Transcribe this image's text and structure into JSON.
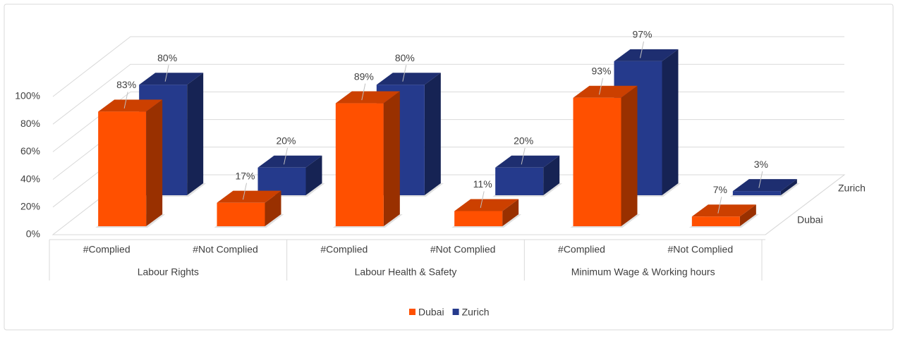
{
  "chart_data": {
    "type": "bar3d",
    "categories": [
      "#Complied",
      "#Not Complied",
      "#Complied",
      "#Not Complied",
      "#Complied",
      "#Not Complied"
    ],
    "groups": [
      "Labour Rights",
      "Labour Health & Safety",
      "Minimum Wage & Working hours"
    ],
    "series": [
      {
        "name": "Dubai",
        "color": "#ff5000",
        "values": [
          83,
          17,
          89,
          11,
          93,
          7
        ],
        "value_labels": [
          "83%",
          "17%",
          "89%",
          "11%",
          "93%",
          "7%"
        ]
      },
      {
        "name": "Zurich",
        "color": "#253a8c",
        "values": [
          80,
          20,
          80,
          20,
          97,
          3
        ],
        "value_labels": [
          "80%",
          "20%",
          "80%",
          "20%",
          "97%",
          "3%"
        ]
      }
    ],
    "ylim": [
      0,
      100
    ],
    "yticks": [
      {
        "value": 0,
        "label": "0%"
      },
      {
        "value": 20,
        "label": "20%"
      },
      {
        "value": 40,
        "label": "40%"
      },
      {
        "value": 60,
        "label": "60%"
      },
      {
        "value": 80,
        "label": "80%"
      },
      {
        "value": 100,
        "label": "100%"
      }
    ],
    "grid": true
  }
}
